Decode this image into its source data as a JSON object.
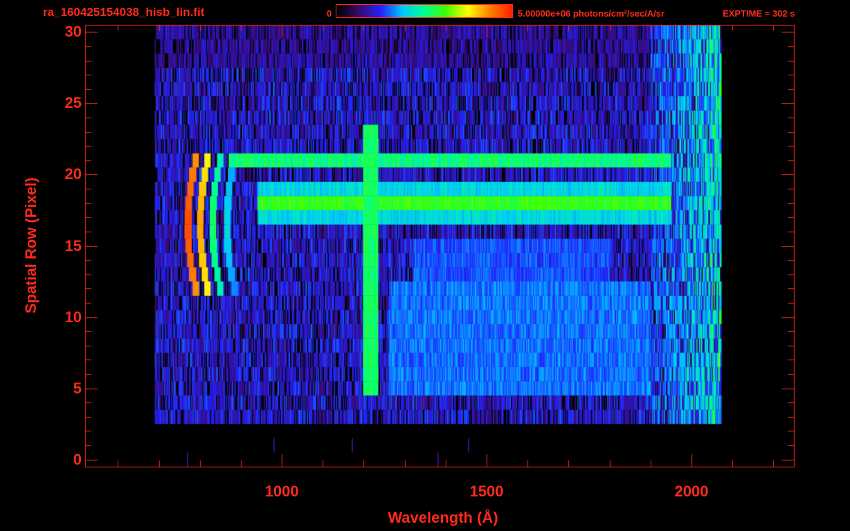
{
  "header": {
    "filename": "ra_160425154038_hisb_lin.fit",
    "colorbar_min": "0",
    "colorbar_max": "5.00000e+06 photons/cm²/sec/A/sr",
    "exptime": "EXPTIME = 302 s"
  },
  "colors": {
    "axis": "#ff2a1a",
    "background": "#000000",
    "colormap": [
      "#000000",
      "#3a0a6a",
      "#2222ff",
      "#00c8ff",
      "#00ff90",
      "#40ff00",
      "#ffff00",
      "#ff8000",
      "#ff2000"
    ]
  },
  "chart_data": {
    "type": "heatmap",
    "title": "",
    "xlabel": "Wavelength (Å)",
    "ylabel": "Spatial Row (Pixel)",
    "xlim": [
      520,
      2250
    ],
    "ylim": [
      -0.5,
      30.5
    ],
    "x_ticks": [
      1000,
      1500,
      2000
    ],
    "y_ticks": [
      0,
      5,
      10,
      15,
      20,
      25,
      30
    ],
    "value_range": [
      0,
      5000000
    ],
    "value_unit": "photons/cm²/sec/A/sr",
    "data_extent": {
      "x": [
        690,
        2070
      ],
      "rows": [
        3,
        30
      ]
    },
    "features": [
      {
        "name": "Lyman-alpha line",
        "x": 1216,
        "rows": [
          5,
          23
        ],
        "level": 0.55
      },
      {
        "name": "bright band",
        "x_range": [
          940,
          1950
        ],
        "row": 18,
        "level": 0.55
      },
      {
        "name": "band",
        "x_range": [
          870,
          1950
        ],
        "row": 21,
        "level": 0.45
      },
      {
        "name": "short-wavelength emission",
        "x_range": [
          760,
          880
        ],
        "rows": [
          12,
          21
        ],
        "level": 0.95
      }
    ]
  }
}
